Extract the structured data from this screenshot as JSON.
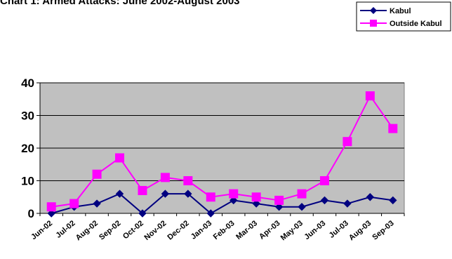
{
  "chart_data": {
    "type": "line",
    "title": "Chart 1: Armed Attacks: June 2002-August 2003",
    "xlabel": "",
    "ylabel": "",
    "categories": [
      "Jun-02",
      "Jul-02",
      "Aug-02",
      "Sep-02",
      "Oct-02",
      "Nov-02",
      "Dec-02",
      "Jan-03",
      "Feb-03",
      "Mar-03",
      "Apr-03",
      "May-03",
      "Jun-03",
      "Jul-03",
      "Aug-03",
      "Sep-03"
    ],
    "ylim": [
      0,
      40
    ],
    "yticks": [
      0,
      10,
      20,
      30,
      40
    ],
    "grid": true,
    "legend": "top-right",
    "plot_background": "#c0c0c0",
    "series": [
      {
        "name": "Kabul",
        "color": "#000080",
        "marker": "diamond",
        "values": [
          0,
          2,
          3,
          6,
          0,
          6,
          6,
          0,
          4,
          3,
          2,
          2,
          4,
          3,
          5,
          4
        ]
      },
      {
        "name": "Outside Kabul",
        "color": "#ff00ff",
        "marker": "square",
        "values": [
          2,
          3,
          12,
          17,
          7,
          11,
          10,
          5,
          6,
          5,
          4,
          6,
          10,
          22,
          36,
          26
        ]
      }
    ]
  }
}
